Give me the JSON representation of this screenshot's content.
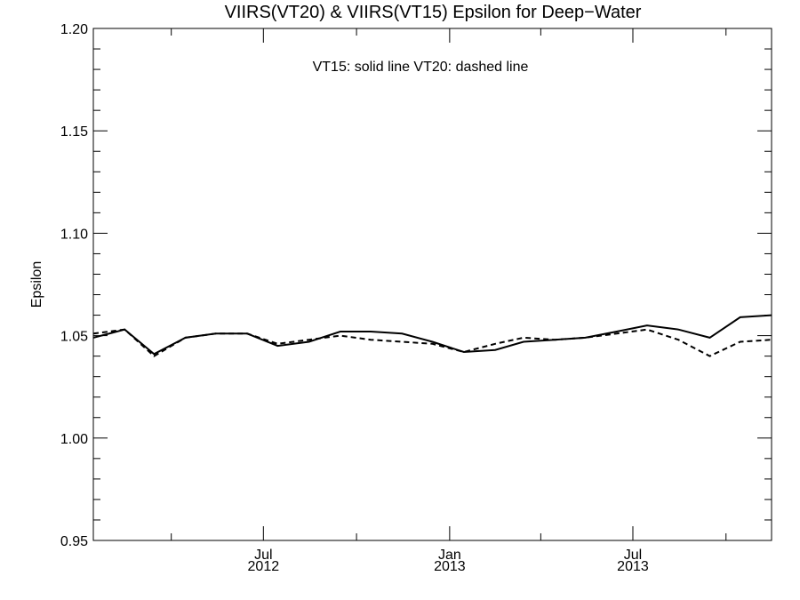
{
  "chart_data": {
    "type": "line",
    "title": "VIIRS(VT20) & VIIRS(VT15)  Epsilon for Deep−Water",
    "xlabel": "",
    "ylabel": "Epsilon",
    "annotation": "VT15: solid line   VT20: dashed line",
    "ylim": [
      0.95,
      1.2
    ],
    "yticks": [
      "0.95",
      "1.00",
      "1.05",
      "1.10",
      "1.15",
      "1.20"
    ],
    "xlim": [
      "2012-01-15",
      "2013-11-15"
    ],
    "xticks": [
      {
        "date": "2012-07-01",
        "line1": "Jul",
        "line2": "2012"
      },
      {
        "date": "2013-01-01",
        "line1": "Jan",
        "line2": "2013"
      },
      {
        "date": "2013-07-01",
        "line1": "Jul",
        "line2": "2013"
      }
    ],
    "grid": false,
    "series": [
      {
        "name": "VT15",
        "style": "solid",
        "x": [
          "2012-01-15",
          "2012-02-15",
          "2012-03-15",
          "2012-04-15",
          "2012-05-15",
          "2012-06-15",
          "2012-07-15",
          "2012-08-15",
          "2012-09-15",
          "2012-10-15",
          "2012-11-15",
          "2012-12-15",
          "2013-01-15",
          "2013-02-15",
          "2013-03-15",
          "2013-04-15",
          "2013-05-15",
          "2013-06-15",
          "2013-07-15",
          "2013-08-15",
          "2013-09-15",
          "2013-10-15",
          "2013-11-15"
        ],
        "values": [
          1.049,
          1.053,
          1.041,
          1.049,
          1.051,
          1.051,
          1.045,
          1.047,
          1.052,
          1.052,
          1.051,
          1.047,
          1.042,
          1.043,
          1.047,
          1.048,
          1.049,
          1.052,
          1.055,
          1.053,
          1.049,
          1.059,
          1.06
        ]
      },
      {
        "name": "VT20",
        "style": "dashed",
        "x": [
          "2012-01-15",
          "2012-02-15",
          "2012-03-15",
          "2012-04-15",
          "2012-05-15",
          "2012-06-15",
          "2012-07-15",
          "2012-08-15",
          "2012-09-15",
          "2012-10-15",
          "2012-11-15",
          "2012-12-15",
          "2013-01-15",
          "2013-02-15",
          "2013-03-15",
          "2013-04-15",
          "2013-05-15",
          "2013-06-15",
          "2013-07-15",
          "2013-08-15",
          "2013-09-15",
          "2013-10-15",
          "2013-11-15"
        ],
        "values": [
          1.051,
          1.053,
          1.04,
          1.049,
          1.051,
          1.051,
          1.046,
          1.048,
          1.05,
          1.048,
          1.047,
          1.046,
          1.042,
          1.046,
          1.049,
          1.048,
          1.049,
          1.051,
          1.053,
          1.048,
          1.04,
          1.047,
          1.048
        ]
      }
    ]
  }
}
